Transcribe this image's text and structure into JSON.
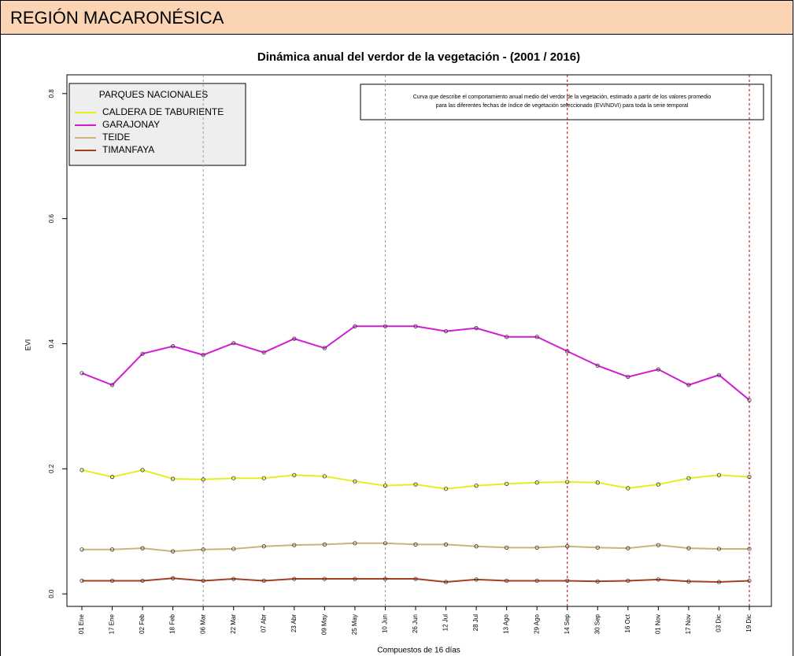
{
  "header": {
    "title": "REGIÓN MACARONÉSICA"
  },
  "chart_data": {
    "type": "line",
    "title": "Dinámica anual del verdor de la vegetación - (2001 / 2016)",
    "x_label": "Compuestos de 16 días",
    "y_label": "EVI",
    "legend_title": "PARQUES NACIONALES",
    "legend": "top-left",
    "annotation": [
      "Curva que describe el comportamiento anual medio del verdor de la vegetación, estimado a partir de los valores promedio",
      "para las diferentes fechas de índice de vegetación seleccionado (EVI/NDVI) para toda la serie temporal"
    ],
    "categories": [
      "01 Ene",
      "17 Ene",
      "02 Feb",
      "18 Feb",
      "06 Mar",
      "22 Mar",
      "07 Abr",
      "23 Abr",
      "09 May",
      "25 May",
      "10 Jun",
      "26 Jun",
      "12 Jul",
      "28 Jul",
      "13 Ago",
      "29 Ago",
      "14 Sep",
      "30 Sep",
      "16 Oct",
      "01 Nov",
      "17 Nov",
      "03 Dic",
      "19 Dic"
    ],
    "ylim": [
      -0.02,
      0.83
    ],
    "yticks": [
      {
        "value": 0,
        "label": "0.0"
      },
      0.2,
      0.4,
      0.6,
      0.8
    ],
    "series": [
      {
        "name": "CALDERA DE TABURIENTE",
        "color": "#e6ef1e",
        "values": [
          0.198,
          0.187,
          0.198,
          0.184,
          0.183,
          0.185,
          0.185,
          0.19,
          0.188,
          0.18,
          0.173,
          0.175,
          0.168,
          0.173,
          0.176,
          0.178,
          0.179,
          0.178,
          0.169,
          0.175,
          0.185,
          0.19,
          0.187
        ]
      },
      {
        "name": "GARAJONAY",
        "color": "#d21ed2",
        "values": [
          0.353,
          0.334,
          0.384,
          0.396,
          0.382,
          0.401,
          0.386,
          0.408,
          0.393,
          0.428,
          0.428,
          0.428,
          0.42,
          0.425,
          0.411,
          0.411,
          0.388,
          0.365,
          0.347,
          0.359,
          0.334,
          0.35,
          0.31
        ]
      },
      {
        "name": "TEIDE",
        "color": "#c9b47c",
        "values": [
          0.071,
          0.071,
          0.073,
          0.068,
          0.071,
          0.072,
          0.076,
          0.078,
          0.079,
          0.081,
          0.081,
          0.079,
          0.079,
          0.076,
          0.074,
          0.074,
          0.076,
          0.074,
          0.073,
          0.078,
          0.073,
          0.072,
          0.072
        ]
      },
      {
        "name": "TIMANFAYA",
        "color": "#a4401f",
        "values": [
          0.021,
          0.021,
          0.021,
          0.025,
          0.021,
          0.024,
          0.021,
          0.024,
          0.024,
          0.024,
          0.024,
          0.024,
          0.019,
          0.023,
          0.021,
          0.021,
          0.021,
          0.02,
          0.021,
          0.023,
          0.02,
          0.019,
          0.021
        ]
      }
    ]
  }
}
